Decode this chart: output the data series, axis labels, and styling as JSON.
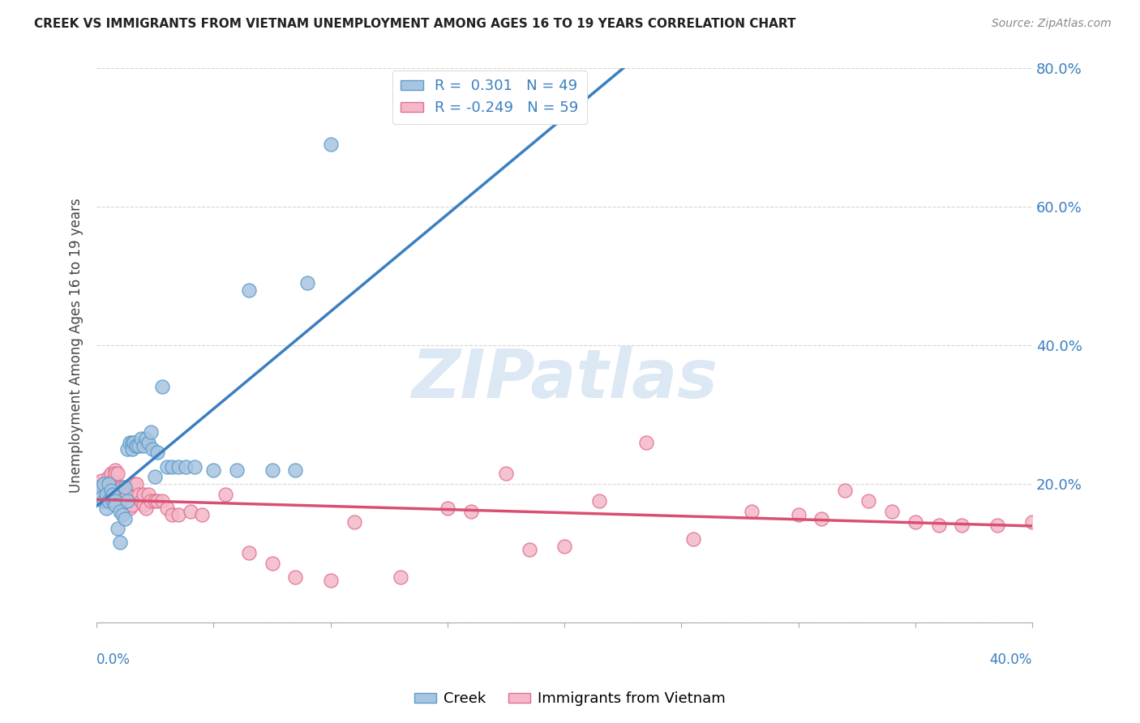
{
  "title": "CREEK VS IMMIGRANTS FROM VIETNAM UNEMPLOYMENT AMONG AGES 16 TO 19 YEARS CORRELATION CHART",
  "source": "Source: ZipAtlas.com",
  "ylabel": "Unemployment Among Ages 16 to 19 years",
  "xlim": [
    0.0,
    0.4
  ],
  "ylim": [
    0.0,
    0.8
  ],
  "yticks": [
    0.0,
    0.2,
    0.4,
    0.6,
    0.8
  ],
  "ytick_labels_right": [
    "",
    "20.0%",
    "40.0%",
    "60.0%",
    "80.0%"
  ],
  "xticks": [
    0.0,
    0.05,
    0.1,
    0.15,
    0.2,
    0.25,
    0.3,
    0.35,
    0.4
  ],
  "creek_color": "#a8c4e0",
  "creek_edge_color": "#5b9dc9",
  "vietnam_color": "#f4b8c8",
  "vietnam_edge_color": "#e07090",
  "trend_creek_color": "#3a7fc1",
  "trend_vietnam_color": "#d94f72",
  "creek_x": [
    0.001,
    0.002,
    0.003,
    0.003,
    0.004,
    0.004,
    0.005,
    0.005,
    0.006,
    0.007,
    0.007,
    0.008,
    0.008,
    0.009,
    0.01,
    0.01,
    0.011,
    0.012,
    0.012,
    0.013,
    0.013,
    0.014,
    0.015,
    0.015,
    0.016,
    0.017,
    0.017,
    0.018,
    0.019,
    0.02,
    0.021,
    0.022,
    0.023,
    0.024,
    0.025,
    0.026,
    0.028,
    0.03,
    0.032,
    0.035,
    0.038,
    0.042,
    0.05,
    0.06,
    0.065,
    0.075,
    0.085,
    0.09,
    0.1
  ],
  "creek_y": [
    0.195,
    0.18,
    0.175,
    0.2,
    0.165,
    0.185,
    0.175,
    0.2,
    0.19,
    0.175,
    0.185,
    0.175,
    0.17,
    0.135,
    0.115,
    0.16,
    0.155,
    0.15,
    0.195,
    0.175,
    0.25,
    0.26,
    0.26,
    0.25,
    0.26,
    0.255,
    0.255,
    0.255,
    0.265,
    0.255,
    0.265,
    0.26,
    0.275,
    0.25,
    0.21,
    0.245,
    0.34,
    0.225,
    0.225,
    0.225,
    0.225,
    0.225,
    0.22,
    0.22,
    0.48,
    0.22,
    0.22,
    0.49,
    0.69
  ],
  "vietnam_x": [
    0.001,
    0.002,
    0.003,
    0.004,
    0.005,
    0.006,
    0.007,
    0.008,
    0.008,
    0.009,
    0.01,
    0.011,
    0.012,
    0.013,
    0.014,
    0.015,
    0.016,
    0.017,
    0.018,
    0.019,
    0.02,
    0.02,
    0.021,
    0.022,
    0.023,
    0.025,
    0.026,
    0.028,
    0.03,
    0.032,
    0.035,
    0.04,
    0.045,
    0.055,
    0.065,
    0.075,
    0.085,
    0.1,
    0.11,
    0.13,
    0.15,
    0.16,
    0.175,
    0.185,
    0.2,
    0.215,
    0.235,
    0.255,
    0.28,
    0.3,
    0.31,
    0.32,
    0.33,
    0.34,
    0.35,
    0.36,
    0.37,
    0.385,
    0.4
  ],
  "vietnam_y": [
    0.2,
    0.205,
    0.195,
    0.195,
    0.21,
    0.215,
    0.205,
    0.22,
    0.215,
    0.215,
    0.195,
    0.195,
    0.18,
    0.185,
    0.165,
    0.17,
    0.2,
    0.2,
    0.185,
    0.175,
    0.17,
    0.185,
    0.165,
    0.185,
    0.175,
    0.175,
    0.175,
    0.175,
    0.165,
    0.155,
    0.155,
    0.16,
    0.155,
    0.185,
    0.1,
    0.085,
    0.065,
    0.06,
    0.145,
    0.065,
    0.165,
    0.16,
    0.215,
    0.105,
    0.11,
    0.175,
    0.26,
    0.12,
    0.16,
    0.155,
    0.15,
    0.19,
    0.175,
    0.16,
    0.145,
    0.14,
    0.14,
    0.14,
    0.145
  ],
  "trend_creek_solid_end": 0.28,
  "trend_creek_end": 0.4,
  "watermark_text": "ZIPatlas",
  "background_color": "#ffffff",
  "grid_color": "#cccccc",
  "legend_items": [
    {
      "label": "R =  0.301   N = 49",
      "color": "#a8c4e0",
      "edge": "#5b9dc9"
    },
    {
      "label": "R = -0.249   N = 59",
      "color": "#f4b8c8",
      "edge": "#e07090"
    }
  ],
  "bottom_legend": [
    {
      "label": "Creek",
      "color": "#a8c4e0",
      "edge": "#5b9dc9"
    },
    {
      "label": "Immigrants from Vietnam",
      "color": "#f4b8c8",
      "edge": "#e07090"
    }
  ]
}
